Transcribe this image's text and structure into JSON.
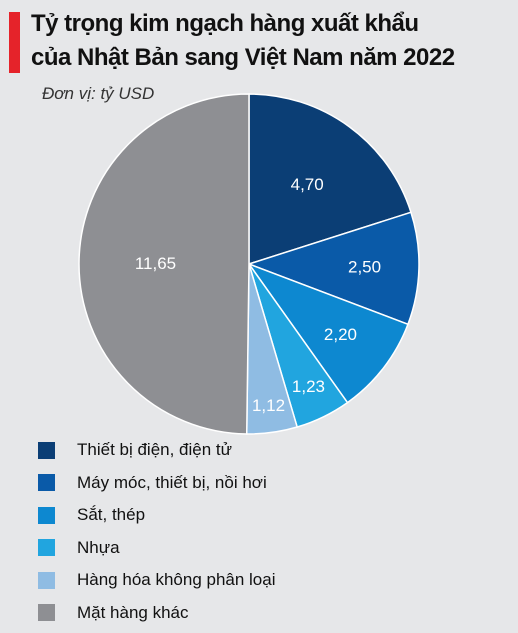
{
  "title_lines": [
    "Tỷ trọng kim ngạch hàng xuất khẩu",
    "của Nhật Bản sang  Việt Nam năm 2022"
  ],
  "unit": "Đơn vị: tỷ USD",
  "colors": {
    "accent": "#e5232a",
    "background": "#e6e7e9"
  },
  "chart_data": {
    "type": "pie",
    "title": "Tỷ trọng kim ngạch hàng xuất khẩu của Nhật Bản sang  Việt Nam năm 2022",
    "unit": "Đơn vị: tỷ USD",
    "legend_position": "bottom-left",
    "slices": [
      {
        "name": "Thiết bị điện, điện tử",
        "value": 4.7,
        "label": "4,70",
        "color": "#0b3e75"
      },
      {
        "name": "Máy móc, thiết bị, nồi hơi",
        "value": 2.5,
        "label": "2,50",
        "color": "#0a5aa8"
      },
      {
        "name": "Sắt, thép",
        "value": 2.2,
        "label": "2,20",
        "color": "#0d88d0"
      },
      {
        "name": "Nhựa",
        "value": 1.23,
        "label": "1,23",
        "color": "#21a5df"
      },
      {
        "name": "Hàng hóa không phân loại",
        "value": 1.12,
        "label": "1,12",
        "color": "#8fbce3"
      },
      {
        "name": "Mặt hàng khác",
        "value": 11.65,
        "label": "11,65",
        "color": "#8e8f93"
      }
    ]
  }
}
